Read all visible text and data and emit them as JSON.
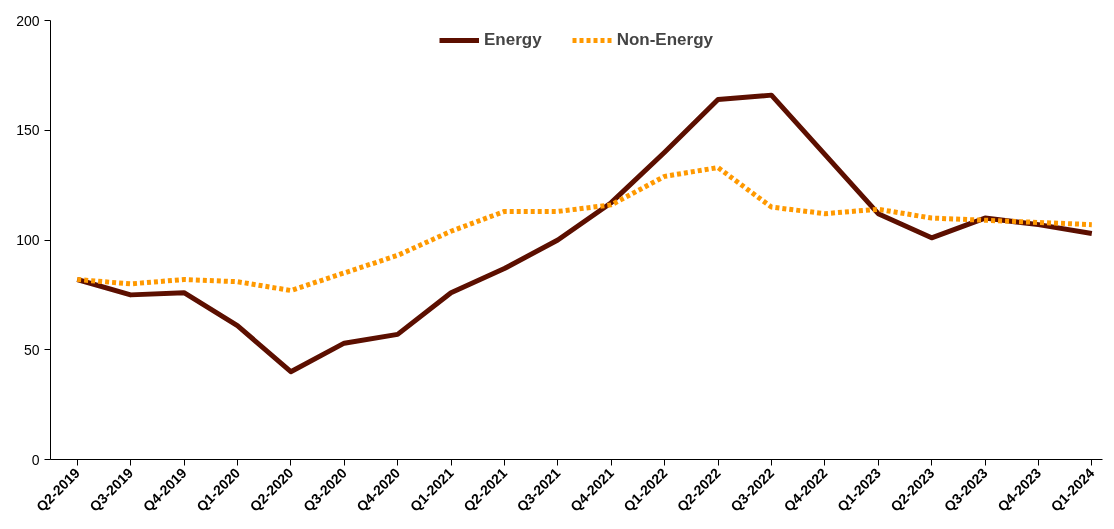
{
  "chart_data": {
    "type": "line",
    "categories": [
      "Q2-2019",
      "Q3-2019",
      "Q4-2019",
      "Q1-2020",
      "Q2-2020",
      "Q3-2020",
      "Q4-2020",
      "Q1-2021",
      "Q2-2021",
      "Q3-2021",
      "Q4-2021",
      "Q1-2022",
      "Q2-2022",
      "Q3-2022",
      "Q4-2022",
      "Q1-2023",
      "Q2-2023",
      "Q3-2023",
      "Q4-2023",
      "Q1-2024"
    ],
    "series": [
      {
        "name": "Energy",
        "color": "#5c0f00",
        "line_style": "solid",
        "values": [
          82,
          75,
          76,
          61,
          40,
          53,
          57,
          76,
          87,
          100,
          117,
          140,
          164,
          166,
          139,
          112,
          101,
          110,
          107,
          103
        ]
      },
      {
        "name": "Non-Energy",
        "color": "#ff9900",
        "line_style": "dotted",
        "values": [
          82,
          80,
          82,
          81,
          77,
          85,
          93,
          104,
          113,
          113,
          116,
          129,
          133,
          115,
          112,
          114,
          110,
          109,
          108,
          107
        ]
      }
    ],
    "ylim": [
      0,
      200
    ],
    "yticks": [
      0,
      50,
      100,
      150,
      200
    ],
    "grid": false,
    "legend": "top",
    "marker": "none"
  }
}
